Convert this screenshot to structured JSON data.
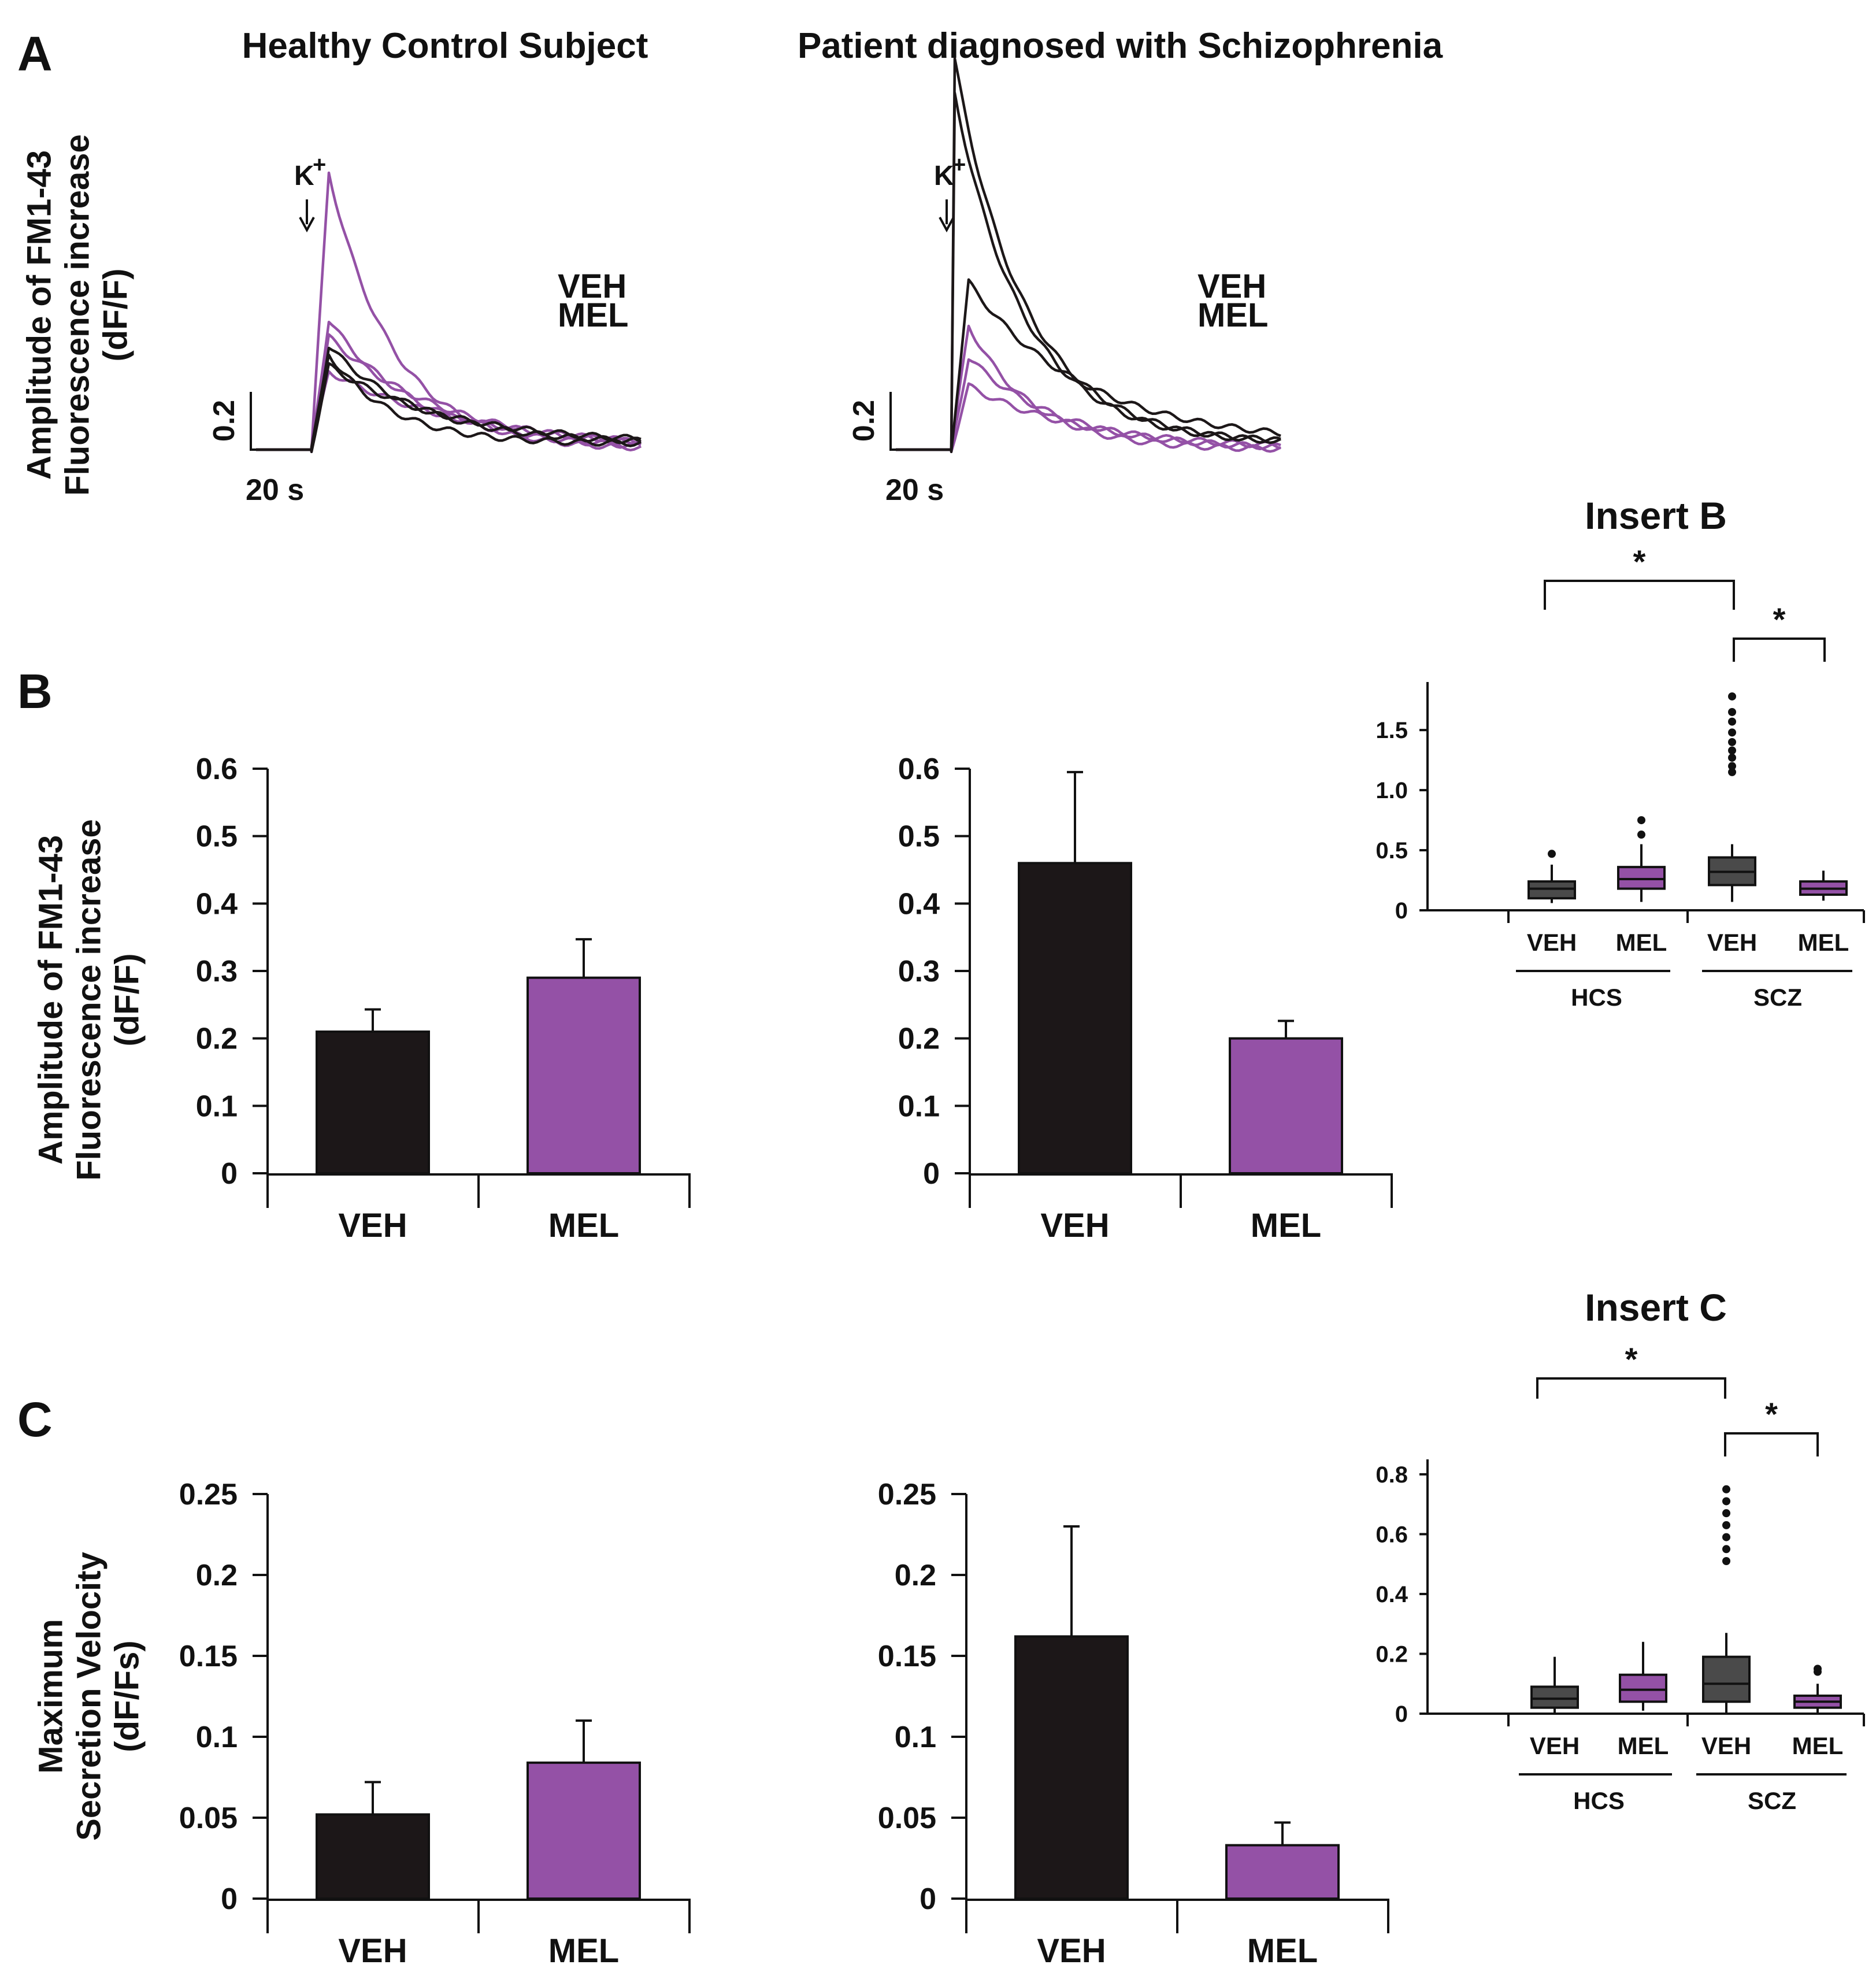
{
  "colors": {
    "veh": "#1c1718",
    "mel": "#9451a6",
    "box_veh": "#4a4a4a",
    "axis": "#111111"
  },
  "panel_labels": {
    "a": "A",
    "b": "B",
    "c": "C"
  },
  "titles": {
    "hcs": "Healthy Control Subject",
    "scz": "Patient diagnosed with Schizophrenia"
  },
  "chart_data": [
    {
      "id": "A-traces",
      "type": "line",
      "ylabel_lines": [
        "Amplitude of FM1-43",
        "Fluorescence increase",
        "(dF/F)"
      ],
      "stimulus_label": "K",
      "stimulus_sup": "+",
      "scale_bar": {
        "y_label": "0.2",
        "x_label": "20 s"
      },
      "legend": [
        "VEH",
        "MEL"
      ],
      "panels": [
        {
          "group": "hcs",
          "peaks": {
            "VEH": [
              0.33,
              0.36,
              0.29
            ],
            "MEL": [
              0.96,
              0.45,
              0.39,
              0.27
            ]
          }
        },
        {
          "group": "scz",
          "peaks": {
            "VEH": [
              1.37,
              1.25,
              0.58
            ],
            "MEL": [
              0.43,
              0.32,
              0.22
            ]
          }
        }
      ]
    },
    {
      "id": "B",
      "type": "bar",
      "ylabel_lines": [
        "Amplitude of FM1-43",
        "Fluorescence increase",
        "(dF/F)"
      ],
      "ylim": [
        0,
        0.6
      ],
      "yticks": [
        0,
        0.1,
        0.2,
        0.3,
        0.4,
        0.5,
        0.6
      ],
      "ytick_labels": [
        "0",
        "0.1",
        "0.2",
        "0.3",
        "0.4",
        "0.5",
        "0.6"
      ],
      "categories": [
        "VEH",
        "MEL"
      ],
      "panels": [
        {
          "group": "hcs",
          "values": [
            0.21,
            0.29
          ],
          "errors": [
            0.033,
            0.057
          ]
        },
        {
          "group": "scz",
          "values": [
            0.46,
            0.2
          ],
          "errors": [
            0.135,
            0.026
          ]
        }
      ]
    },
    {
      "id": "C",
      "type": "bar",
      "ylabel_lines": [
        "Maximum",
        "Secretion Velocity",
        "(dF/Fs)"
      ],
      "ylim": [
        0,
        0.25
      ],
      "yticks": [
        0,
        0.05,
        0.1,
        0.15,
        0.2,
        0.25
      ],
      "ytick_labels": [
        "0",
        "0.05",
        "0.1",
        "0.15",
        "0.2",
        "0.25"
      ],
      "categories": [
        "VEH",
        "MEL"
      ],
      "panels": [
        {
          "group": "hcs",
          "values": [
            0.052,
            0.084
          ],
          "errors": [
            0.02,
            0.026
          ]
        },
        {
          "group": "scz",
          "values": [
            0.162,
            0.033
          ],
          "errors": [
            0.068,
            0.014
          ]
        }
      ]
    },
    {
      "id": "Insert B",
      "type": "box",
      "title": "Insert B",
      "ylim": [
        0,
        1.9
      ],
      "yticks": [
        0,
        0.5,
        1.0,
        1.5
      ],
      "ytick_labels": [
        "0",
        "0.5",
        "1.0",
        "1.5"
      ],
      "categories": [
        "VEH",
        "MEL",
        "VEH",
        "MEL"
      ],
      "groups": [
        "HCS",
        "SCZ"
      ],
      "significance": [
        "*",
        "*"
      ],
      "boxes": [
        {
          "q1": 0.1,
          "median": 0.18,
          "q3": 0.24,
          "whisker_low": 0.06,
          "whisker_high": 0.38,
          "outliers": [
            0.47
          ]
        },
        {
          "q1": 0.18,
          "median": 0.26,
          "q3": 0.36,
          "whisker_low": 0.07,
          "whisker_high": 0.55,
          "outliers": [
            0.63,
            0.75
          ]
        },
        {
          "q1": 0.21,
          "median": 0.32,
          "q3": 0.44,
          "whisker_low": 0.07,
          "whisker_high": 0.55,
          "outliers": [
            1.15,
            1.2,
            1.27,
            1.33,
            1.4,
            1.48,
            1.57,
            1.65,
            1.78
          ]
        },
        {
          "q1": 0.13,
          "median": 0.18,
          "q3": 0.24,
          "whisker_low": 0.08,
          "whisker_high": 0.33,
          "outliers": []
        }
      ]
    },
    {
      "id": "Insert C",
      "type": "box",
      "title": "Insert C",
      "ylim": [
        0,
        0.85
      ],
      "yticks": [
        0,
        0.2,
        0.4,
        0.6,
        0.8
      ],
      "ytick_labels": [
        "0",
        "0.2",
        "0.4",
        "0.6",
        "0.8"
      ],
      "categories": [
        "VEH",
        "MEL",
        "VEH",
        "MEL"
      ],
      "groups": [
        "HCS",
        "SCZ"
      ],
      "significance": [
        "*",
        "*"
      ],
      "boxes": [
        {
          "q1": 0.02,
          "median": 0.05,
          "q3": 0.09,
          "whisker_low": 0.0,
          "whisker_high": 0.19,
          "outliers": []
        },
        {
          "q1": 0.04,
          "median": 0.08,
          "q3": 0.13,
          "whisker_low": 0.01,
          "whisker_high": 0.24,
          "outliers": []
        },
        {
          "q1": 0.04,
          "median": 0.1,
          "q3": 0.19,
          "whisker_low": 0.0,
          "whisker_high": 0.27,
          "outliers": [
            0.51,
            0.55,
            0.59,
            0.63,
            0.67,
            0.71,
            0.75
          ]
        },
        {
          "q1": 0.02,
          "median": 0.04,
          "q3": 0.06,
          "whisker_low": 0.0,
          "whisker_high": 0.1,
          "outliers": [
            0.14,
            0.15
          ]
        }
      ]
    }
  ]
}
